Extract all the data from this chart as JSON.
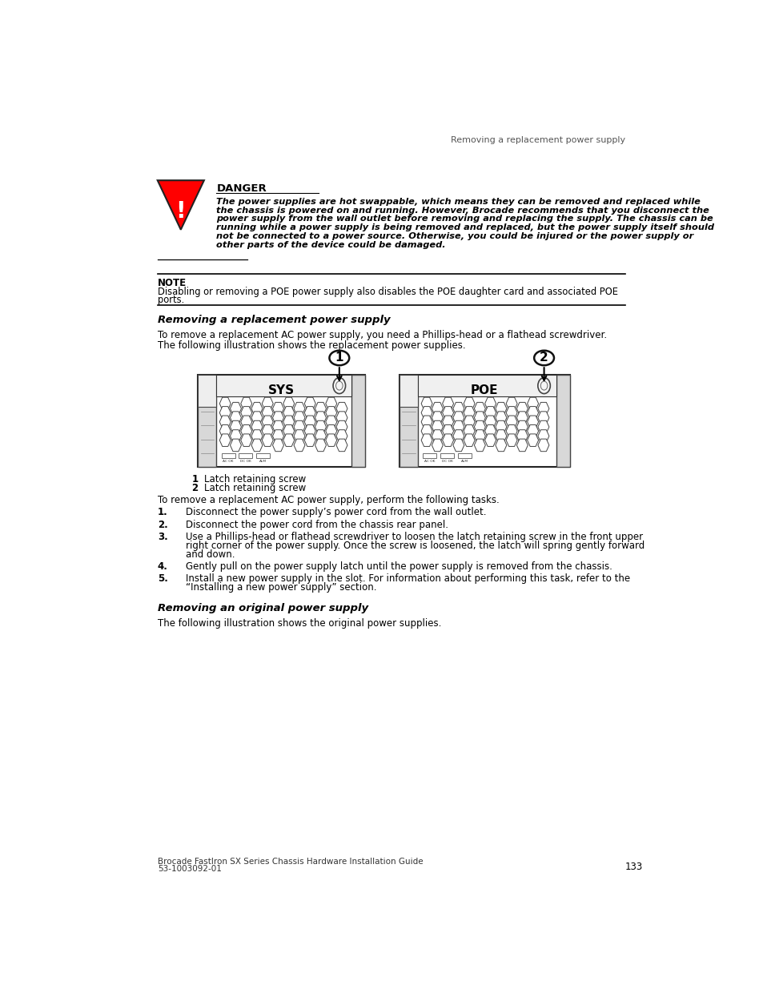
{
  "page_header": "Removing a replacement power supply",
  "page_number": "133",
  "footer_line1": "Brocade FastIron SX Series Chassis Hardware Installation Guide",
  "footer_line2": "53-1003092-01",
  "danger_title": "DANGER",
  "danger_text_lines": [
    "The power supplies are hot swappable, which means they can be removed and replaced while",
    "the chassis is powered on and running. However, Brocade recommends that you disconnect the",
    "power supply from the wall outlet before removing and replacing the supply. The chassis can be",
    "running while a power supply is being removed and replaced, but the power supply itself should",
    "not be connected to a power source. Otherwise, you could be injured or the power supply or",
    "other parts of the device could be damaged."
  ],
  "note_title": "NOTE",
  "note_text_lines": [
    "Disabling or removing a POE power supply also disables the POE daughter card and associated POE",
    "ports."
  ],
  "section1_title": "Removing a replacement power supply",
  "section1_para1": "To remove a replacement AC power supply, you need a Phillips-head or a flathead screwdriver.",
  "section1_para2": "The following illustration shows the replacement power supplies.",
  "sys_label": "SYS",
  "poe_label": "POE",
  "legend1_num": "1",
  "legend1_text": "    Latch retaining screw",
  "legend2_num": "2",
  "legend2_text": "    Latch retaining screw",
  "section1_para3": "To remove a replacement AC power supply, perform the following tasks.",
  "steps": [
    [
      "1.",
      "Disconnect the power supply’s power cord from the wall outlet."
    ],
    [
      "2.",
      "Disconnect the power cord from the chassis rear panel."
    ],
    [
      "3.",
      "Use a Phillips-head or flathead screwdriver to loosen the latch retaining screw in the front upper\n    right corner of the power supply. Once the screw is loosened, the latch will spring gently forward\n    and down."
    ],
    [
      "4.",
      "Gently pull on the power supply latch until the power supply is removed from the chassis."
    ],
    [
      "5.",
      "Install a new power supply in the slot. For information about performing this task, refer to the\n    “Installing a new power supply” section."
    ]
  ],
  "section2_title": "Removing an original power supply",
  "section2_para1": "The following illustration shows the original power supplies.",
  "bg_color": "#ffffff",
  "text_color": "#000000"
}
